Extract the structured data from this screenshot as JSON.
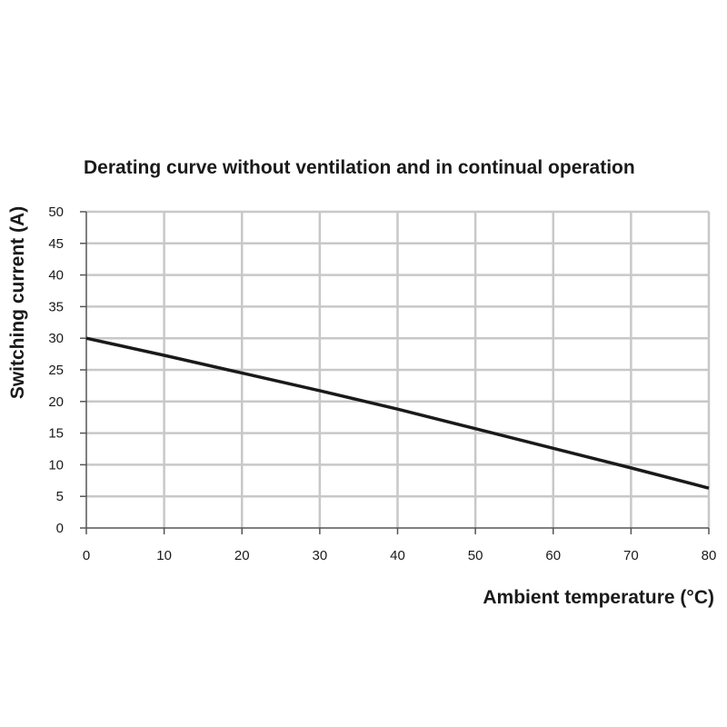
{
  "chart_data": {
    "type": "line",
    "title": "Derating curve without ventilation and in continual operation",
    "xlabel": "Ambient temperature (°C)",
    "ylabel": "Switching current (A)",
    "xlim": [
      0,
      80
    ],
    "ylim": [
      0,
      50
    ],
    "xticks": [
      0,
      10,
      20,
      30,
      40,
      50,
      60,
      70,
      80
    ],
    "yticks": [
      0,
      5,
      10,
      15,
      20,
      25,
      30,
      35,
      40,
      45,
      50
    ],
    "grid": true,
    "legend": "none",
    "series": [
      {
        "x": [
          0,
          10,
          20,
          30,
          40,
          50,
          60,
          70,
          80
        ],
        "y": [
          30,
          27.3,
          24.5,
          21.7,
          18.8,
          15.7,
          12.6,
          9.5,
          6.3
        ],
        "color": "#1a1a1a"
      }
    ]
  }
}
